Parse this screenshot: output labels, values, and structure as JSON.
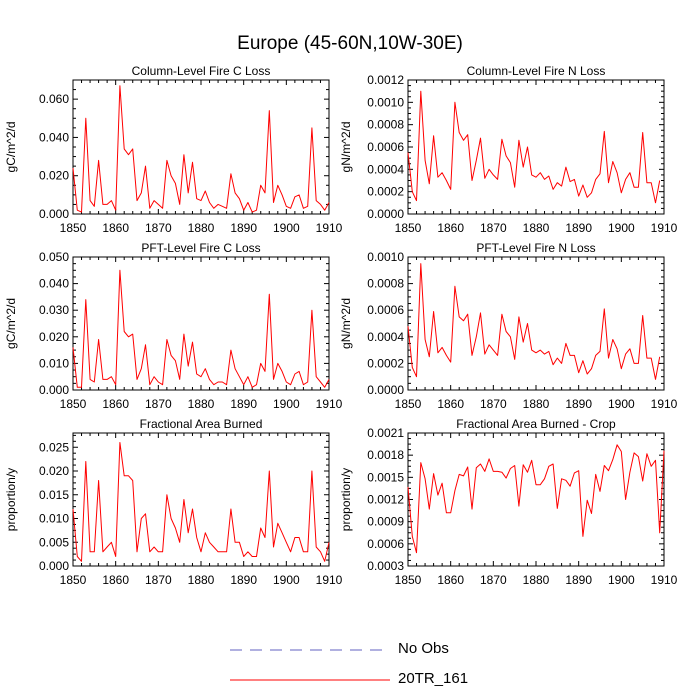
{
  "title": "Europe (45-60N,10W-30E)",
  "colors": {
    "model": "#ff0000",
    "obs": "#6060c0",
    "axis": "#000000"
  },
  "legend": {
    "obs_label": "No Obs",
    "model_label": "20TR_161"
  },
  "chart_data": [
    {
      "type": "line",
      "title": "Column-Level Fire C Loss",
      "ylabel": "gC/m^2/d",
      "xlim": [
        1850,
        1910
      ],
      "ylim": [
        0,
        0.07
      ],
      "yticks": [
        0,
        0.02,
        0.04,
        0.06
      ],
      "ytick_labels": [
        "0.000",
        "0.020",
        "0.040",
        "0.060"
      ],
      "xticks": [
        1850,
        1860,
        1870,
        1880,
        1890,
        1900,
        1910
      ],
      "xtick_labels": [
        "1850",
        "1860",
        "1870",
        "1880",
        "1890",
        "1900",
        "1910"
      ],
      "series": [
        {
          "name": "20TR_161",
          "x_start": 1850,
          "values": [
            0.024,
            0.002,
            0.001,
            0.05,
            0.007,
            0.004,
            0.028,
            0.005,
            0.005,
            0.007,
            0.002,
            0.067,
            0.034,
            0.031,
            0.034,
            0.007,
            0.011,
            0.025,
            0.003,
            0.007,
            0.005,
            0.003,
            0.028,
            0.02,
            0.016,
            0.005,
            0.031,
            0.011,
            0.027,
            0.008,
            0.007,
            0.012,
            0.006,
            0.003,
            0.005,
            0.004,
            0.003,
            0.021,
            0.011,
            0.008,
            0.002,
            0.006,
            0.001,
            0.002,
            0.015,
            0.011,
            0.054,
            0.006,
            0.015,
            0.01,
            0.004,
            0.003,
            0.009,
            0.01,
            0.003,
            0.004,
            0.045,
            0.007,
            0.005,
            0.002,
            0.006
          ]
        }
      ]
    },
    {
      "type": "line",
      "title": "Column-Level Fire N Loss",
      "ylabel": "gN/m^2/d",
      "xlim": [
        1850,
        1910
      ],
      "ylim": [
        0,
        0.0012
      ],
      "yticks": [
        0,
        0.0002,
        0.0004,
        0.0006,
        0.0008,
        0.001,
        0.0012
      ],
      "ytick_labels": [
        "0.0000",
        "0.0002",
        "0.0004",
        "0.0006",
        "0.0008",
        "0.0010",
        "0.0012"
      ],
      "xticks": [
        1850,
        1860,
        1870,
        1880,
        1890,
        1900,
        1910
      ],
      "xtick_labels": [
        "1850",
        "1860",
        "1870",
        "1880",
        "1890",
        "1900",
        "1910"
      ],
      "series": [
        {
          "name": "20TR_161",
          "x_start": 1850,
          "values": [
            0.00055,
            0.0002,
            0.00012,
            0.0011,
            0.00048,
            0.00027,
            0.0007,
            0.00033,
            0.00037,
            0.0003,
            0.00022,
            0.001,
            0.00073,
            0.00066,
            0.00071,
            0.0003,
            0.00048,
            0.00068,
            0.00032,
            0.0004,
            0.00035,
            0.00031,
            0.00067,
            0.00052,
            0.00046,
            0.00024,
            0.00066,
            0.00042,
            0.0006,
            0.00035,
            0.00033,
            0.00037,
            0.00031,
            0.00034,
            0.00022,
            0.00028,
            0.00025,
            0.00042,
            0.00029,
            0.00031,
            0.00016,
            0.00026,
            0.00015,
            0.00019,
            0.00031,
            0.00036,
            0.00074,
            0.00028,
            0.00047,
            0.00037,
            0.00019,
            0.00031,
            0.00037,
            0.00024,
            0.00024,
            0.00073,
            0.00028,
            0.00028,
            0.0001,
            0.0003
          ]
        }
      ]
    },
    {
      "type": "line",
      "title": "PFT-Level Fire C Loss",
      "ylabel": "gC/m^2/d",
      "xlim": [
        1850,
        1910
      ],
      "ylim": [
        0,
        0.05
      ],
      "yticks": [
        0,
        0.01,
        0.02,
        0.03,
        0.04,
        0.05
      ],
      "ytick_labels": [
        "0.000",
        "0.010",
        "0.020",
        "0.030",
        "0.040",
        "0.050"
      ],
      "xticks": [
        1850,
        1860,
        1870,
        1880,
        1890,
        1900,
        1910
      ],
      "xtick_labels": [
        "1850",
        "1860",
        "1870",
        "1880",
        "1890",
        "1900",
        "1910"
      ],
      "series": [
        {
          "name": "20TR_161",
          "x_start": 1850,
          "values": [
            0.016,
            0.001,
            0.001,
            0.034,
            0.004,
            0.003,
            0.019,
            0.004,
            0.004,
            0.005,
            0.002,
            0.045,
            0.022,
            0.02,
            0.021,
            0.004,
            0.008,
            0.017,
            0.002,
            0.005,
            0.003,
            0.002,
            0.019,
            0.013,
            0.011,
            0.004,
            0.021,
            0.009,
            0.018,
            0.006,
            0.005,
            0.008,
            0.004,
            0.002,
            0.003,
            0.003,
            0.002,
            0.015,
            0.008,
            0.005,
            0.002,
            0.005,
            0.001,
            0.002,
            0.01,
            0.007,
            0.036,
            0.004,
            0.01,
            0.007,
            0.003,
            0.002,
            0.006,
            0.007,
            0.002,
            0.003,
            0.03,
            0.005,
            0.003,
            0.001,
            0.004
          ]
        }
      ]
    },
    {
      "type": "line",
      "title": "PFT-Level Fire N Loss",
      "ylabel": "gN/m^2/d",
      "xlim": [
        1850,
        1910
      ],
      "ylim": [
        0,
        0.001
      ],
      "yticks": [
        0,
        0.0002,
        0.0004,
        0.0006,
        0.0008,
        0.001
      ],
      "ytick_labels": [
        "0.0000",
        "0.0002",
        "0.0004",
        "0.0006",
        "0.0008",
        "0.0010"
      ],
      "xticks": [
        1850,
        1860,
        1870,
        1880,
        1890,
        1900,
        1910
      ],
      "xtick_labels": [
        "1850",
        "1860",
        "1870",
        "1880",
        "1890",
        "1900",
        "1910"
      ],
      "series": [
        {
          "name": "20TR_161",
          "x_start": 1850,
          "values": [
            0.00048,
            0.00017,
            0.0001,
            0.00095,
            0.00038,
            0.00025,
            0.00059,
            0.00028,
            0.00032,
            0.00026,
            0.00021,
            0.00078,
            0.00055,
            0.00052,
            0.00057,
            0.00026,
            0.0004,
            0.00058,
            0.00027,
            0.00034,
            0.0003,
            0.00026,
            0.00057,
            0.00044,
            0.0004,
            0.00023,
            0.00055,
            0.00036,
            0.0005,
            0.0003,
            0.00028,
            0.0003,
            0.00027,
            0.00029,
            0.00019,
            0.00024,
            0.0002,
            0.00035,
            0.00026,
            0.00026,
            0.00013,
            0.00022,
            0.00012,
            0.00016,
            0.00026,
            0.00029,
            0.00061,
            0.00024,
            0.00038,
            0.00031,
            0.00016,
            0.00027,
            0.00031,
            0.0002,
            0.0002,
            0.00056,
            0.00024,
            0.00024,
            8e-05,
            0.00025
          ]
        }
      ]
    },
    {
      "type": "line",
      "title": "Fractional Area Burned",
      "ylabel": "proportion/y",
      "xlim": [
        1850,
        1910
      ],
      "ylim": [
        0,
        0.028
      ],
      "yticks": [
        0,
        0.005,
        0.01,
        0.015,
        0.02,
        0.025
      ],
      "ytick_labels": [
        "0.000",
        "0.005",
        "0.010",
        "0.015",
        "0.020",
        "0.025"
      ],
      "xticks": [
        1850,
        1860,
        1870,
        1880,
        1890,
        1900,
        1910
      ],
      "xtick_labels": [
        "1850",
        "1860",
        "1870",
        "1880",
        "1890",
        "1900",
        "1910"
      ],
      "series": [
        {
          "name": "20TR_161",
          "x_start": 1850,
          "values": [
            0.012,
            0.002,
            0.001,
            0.022,
            0.003,
            0.003,
            0.018,
            0.003,
            0.004,
            0.005,
            0.002,
            0.026,
            0.019,
            0.019,
            0.018,
            0.003,
            0.01,
            0.011,
            0.003,
            0.004,
            0.003,
            0.003,
            0.015,
            0.01,
            0.008,
            0.005,
            0.014,
            0.007,
            0.012,
            0.006,
            0.003,
            0.007,
            0.005,
            0.004,
            0.003,
            0.003,
            0.003,
            0.012,
            0.005,
            0.005,
            0.002,
            0.003,
            0.002,
            0.002,
            0.008,
            0.006,
            0.02,
            0.004,
            0.009,
            0.007,
            0.005,
            0.003,
            0.006,
            0.006,
            0.003,
            0.003,
            0.02,
            0.004,
            0.003,
            0.001,
            0.005
          ]
        }
      ]
    },
    {
      "type": "line",
      "title": "Fractional Area Burned - Crop",
      "ylabel": "proportion/y",
      "xlim": [
        1850,
        1910
      ],
      "ylim": [
        0.0003,
        0.0021
      ],
      "yticks": [
        0.0003,
        0.0006,
        0.0009,
        0.0012,
        0.0015,
        0.0018,
        0.0021
      ],
      "ytick_labels": [
        "0.0003",
        "0.0006",
        "0.0009",
        "0.0012",
        "0.0015",
        "0.0018",
        "0.0021"
      ],
      "xticks": [
        1850,
        1860,
        1870,
        1880,
        1890,
        1900,
        1910
      ],
      "xtick_labels": [
        "1850",
        "1860",
        "1870",
        "1880",
        "1890",
        "1900",
        "1910"
      ],
      "series": [
        {
          "name": "20TR_161",
          "x_start": 1850,
          "values": [
            0.00137,
            0.0007,
            0.00048,
            0.0017,
            0.00148,
            0.00107,
            0.00155,
            0.00126,
            0.00142,
            0.00102,
            0.00102,
            0.00132,
            0.00154,
            0.00152,
            0.00164,
            0.00107,
            0.00163,
            0.00168,
            0.00158,
            0.00175,
            0.00158,
            0.00158,
            0.00157,
            0.00149,
            0.00162,
            0.00166,
            0.00111,
            0.00167,
            0.00157,
            0.00173,
            0.0014,
            0.0014,
            0.00148,
            0.00165,
            0.00168,
            0.00108,
            0.00148,
            0.00146,
            0.00138,
            0.00156,
            0.00159,
            0.0007,
            0.00119,
            0.00101,
            0.00154,
            0.00131,
            0.00166,
            0.00159,
            0.00174,
            0.00194,
            0.00185,
            0.0012,
            0.00157,
            0.00183,
            0.00178,
            0.00145,
            0.00182,
            0.00165,
            0.00173,
            0.00075,
            0.00186
          ]
        }
      ]
    }
  ]
}
